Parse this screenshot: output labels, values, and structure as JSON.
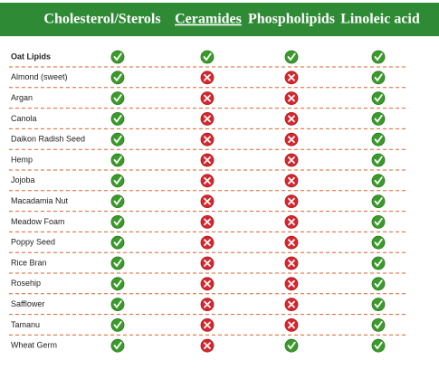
{
  "header": {
    "columns": [
      "Cholesterol/Sterols",
      "Ceramides",
      "Phospholipids",
      "Linoleic acid"
    ]
  },
  "table": {
    "rows": [
      {
        "name": "Oat Lipids",
        "values": [
          true,
          true,
          true,
          true
        ]
      },
      {
        "name": "Almond (sweet)",
        "values": [
          true,
          false,
          false,
          true
        ]
      },
      {
        "name": "Argan",
        "values": [
          true,
          false,
          false,
          true
        ]
      },
      {
        "name": "Canola",
        "values": [
          true,
          false,
          false,
          true
        ]
      },
      {
        "name": "Daikon Radish Seed",
        "values": [
          true,
          false,
          false,
          true
        ]
      },
      {
        "name": "Hemp",
        "values": [
          true,
          false,
          false,
          true
        ]
      },
      {
        "name": "Jojoba",
        "values": [
          true,
          false,
          false,
          true
        ]
      },
      {
        "name": "Macadamia Nut",
        "values": [
          true,
          false,
          false,
          true
        ]
      },
      {
        "name": "Meadow Foam",
        "values": [
          true,
          false,
          false,
          true
        ]
      },
      {
        "name": "Poppy Seed",
        "values": [
          true,
          false,
          false,
          true
        ]
      },
      {
        "name": "Rice Bran",
        "values": [
          true,
          false,
          false,
          true
        ]
      },
      {
        "name": "Rosehip",
        "values": [
          true,
          false,
          false,
          true
        ]
      },
      {
        "name": "Safflower",
        "values": [
          true,
          false,
          false,
          true
        ]
      },
      {
        "name": "Tamanu",
        "values": [
          true,
          false,
          false,
          true
        ]
      },
      {
        "name": "Wheat Germ",
        "values": [
          true,
          false,
          true,
          true
        ]
      }
    ]
  }
}
